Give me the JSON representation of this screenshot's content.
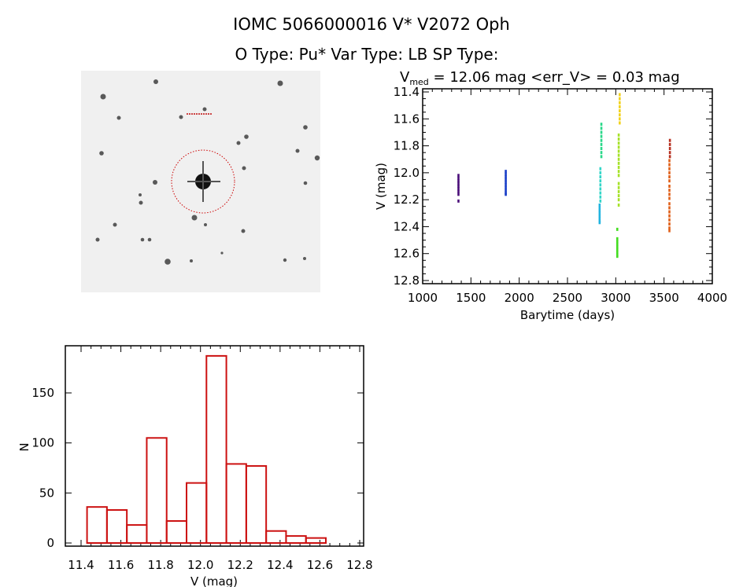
{
  "header": {
    "title": "IOMC 5066000016    V* V2072 Oph",
    "subtitle": "O Type: Pu*  Var Type: LB  SP Type:"
  },
  "finding_chart": {
    "background": "#f0f0f0",
    "circle_color": "#cc0000"
  },
  "chart_data": [
    {
      "type": "scatter",
      "title_prefix": "V",
      "title_sub": "med",
      "title_rest": " = 12.06 mag <err_V> = 0.03 mag",
      "xlabel": "Barytime (days)",
      "ylabel": "V (mag)",
      "xlim": [
        1000,
        4000
      ],
      "ylim": [
        12.8,
        11.4
      ],
      "y_inverted": true,
      "xticks": [
        "1000",
        "1500",
        "2000",
        "2500",
        "3000",
        "3500",
        "4000"
      ],
      "yticks": [
        "11.4",
        "11.6",
        "11.8",
        "12.0",
        "12.2",
        "12.4",
        "12.6",
        "12.8"
      ],
      "grid": false,
      "series": [
        {
          "color": "#4b0f7a",
          "t": 1370,
          "v": [
            12.02,
            12.04,
            12.06,
            12.08,
            12.1,
            12.12,
            12.14,
            12.16,
            12.21
          ]
        },
        {
          "color": "#1a3fc8",
          "t": 1860,
          "v": [
            11.99,
            12.01,
            12.03,
            12.05,
            12.07,
            12.09,
            12.11,
            12.13,
            12.15,
            12.16
          ]
        },
        {
          "color": "#2bd88a",
          "t": 2850,
          "v": [
            11.64,
            11.67,
            11.7,
            11.73,
            11.76,
            11.79,
            11.82,
            11.85,
            11.88
          ]
        },
        {
          "color": "#33d6c8",
          "t": 2840,
          "v": [
            11.97,
            12.0,
            12.03,
            12.06,
            12.09,
            12.12,
            12.15,
            12.18,
            12.21
          ]
        },
        {
          "color": "#22b4e0",
          "t": 2832,
          "v": [
            12.24,
            12.26,
            12.28,
            12.3,
            12.32,
            12.34,
            12.36,
            12.37
          ]
        },
        {
          "color": "#44dd22",
          "t": 3015,
          "v": [
            12.42,
            12.49,
            12.51,
            12.53,
            12.55,
            12.57,
            12.59,
            12.61,
            12.62
          ]
        },
        {
          "color": "#a6e22a",
          "t": 3030,
          "v": [
            11.72,
            11.75,
            11.78,
            11.81,
            11.84,
            11.87,
            11.9,
            11.93,
            11.96,
            11.99,
            12.02,
            12.08,
            12.11,
            12.14,
            12.17,
            12.2,
            12.24
          ]
        },
        {
          "color": "#f2d21c",
          "t": 3040,
          "v": [
            11.42,
            11.45,
            11.48,
            11.51,
            11.54,
            11.57,
            11.6,
            11.63
          ]
        },
        {
          "color": "#b83020",
          "t": 3560,
          "v": [
            11.76,
            11.79,
            11.82,
            11.85,
            11.88
          ]
        },
        {
          "color": "#e0601a",
          "t": 3555,
          "v": [
            11.91,
            11.94,
            11.97,
            12.0,
            12.03,
            12.06,
            12.1,
            12.13,
            12.16,
            12.19,
            12.23,
            12.26,
            12.29,
            12.32,
            12.35,
            12.38,
            12.41,
            12.43
          ]
        }
      ]
    },
    {
      "type": "bar",
      "subtype": "histogram",
      "xlabel": "V (mag)",
      "ylabel": "N",
      "xlim": [
        11.4,
        12.8
      ],
      "ylim": [
        0,
        190
      ],
      "xticks": [
        "11.4",
        "11.6",
        "11.8",
        "12.0",
        "12.2",
        "12.4",
        "12.6",
        "12.8"
      ],
      "yticks": [
        "0",
        "50",
        "100",
        "150"
      ],
      "bar_color": "#cc1111",
      "bin_edges": [
        11.43,
        11.53,
        11.63,
        11.73,
        11.83,
        11.93,
        12.03,
        12.13,
        12.23,
        12.33,
        12.43,
        12.53,
        12.63
      ],
      "values": [
        36,
        33,
        18,
        105,
        22,
        60,
        187,
        79,
        77,
        12,
        7,
        5
      ]
    }
  ]
}
